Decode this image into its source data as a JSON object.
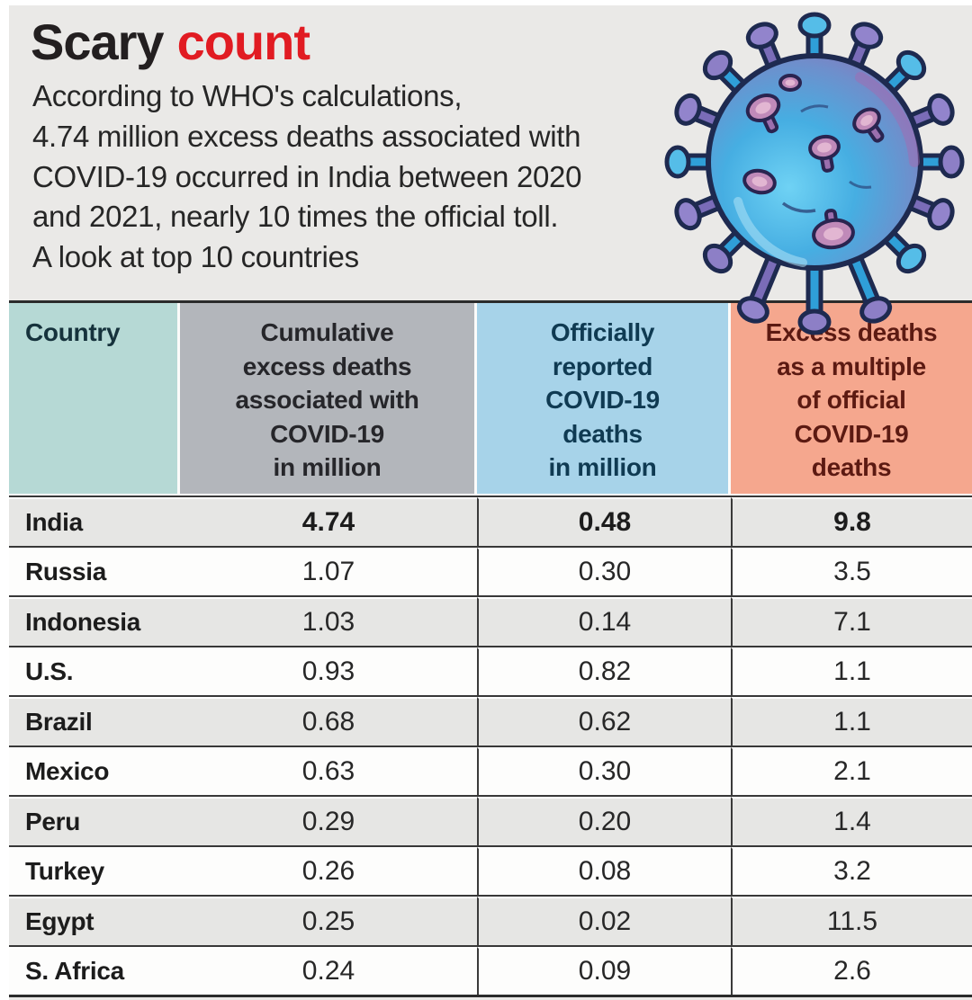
{
  "headline": {
    "word_black": "Scary",
    "word_red": "count"
  },
  "subtitle": "According to WHO's calculations,\n4.74 million excess deaths associated with\nCOVID-19 occurred in India between 2020\nand 2021, nearly 10 times the official toll.\nA look at top 10 countries",
  "illustration": {
    "name": "coronavirus",
    "body_gradient": [
      "#66cdf2",
      "#46aee2",
      "#9c64ae"
    ],
    "spike_cyan": "#2f9fd8",
    "spike_purple": "#7a6cb8",
    "outline": "#1e2a50",
    "spot_color": "#c08ab9"
  },
  "table": {
    "columns": [
      {
        "label": "Country",
        "bg": "#b6d9d5",
        "text_color": "#16323c"
      },
      {
        "label": "Cumulative\nexcess deaths\nassociated with\nCOVID-19\nin million",
        "bg": "#b3b6bb",
        "text_color": "#26262a"
      },
      {
        "label": "Officially\nreported\nCOVID-19\ndeaths\nin million",
        "bg": "#a7d3e9",
        "text_color": "#0f3a52"
      },
      {
        "label": "Excess deaths\nas a multiple\nof official\nCOVID-19\ndeaths",
        "bg": "#f5a78e",
        "text_color": "#5c1a12"
      }
    ],
    "rows": [
      {
        "country": "India",
        "excess": "4.74",
        "official": "0.48",
        "multiple": "9.8",
        "bold": true
      },
      {
        "country": "Russia",
        "excess": "1.07",
        "official": "0.30",
        "multiple": "3.5",
        "bold": false
      },
      {
        "country": "Indonesia",
        "excess": "1.03",
        "official": "0.14",
        "multiple": "7.1",
        "bold": false
      },
      {
        "country": "U.S.",
        "excess": "0.93",
        "official": "0.82",
        "multiple": "1.1",
        "bold": false
      },
      {
        "country": "Brazil",
        "excess": "0.68",
        "official": "0.62",
        "multiple": "1.1",
        "bold": false
      },
      {
        "country": "Mexico",
        "excess": "0.63",
        "official": "0.30",
        "multiple": "2.1",
        "bold": false
      },
      {
        "country": "Peru",
        "excess": "0.29",
        "official": "0.20",
        "multiple": "1.4",
        "bold": false
      },
      {
        "country": "Turkey",
        "excess": "0.26",
        "official": "0.08",
        "multiple": "3.2",
        "bold": false
      },
      {
        "country": "Egypt",
        "excess": "0.25",
        "official": "0.02",
        "multiple": "11.5",
        "bold": false
      },
      {
        "country": "S. Africa",
        "excess": "0.24",
        "official": "0.09",
        "multiple": "2.6",
        "bold": false
      }
    ]
  },
  "colors": {
    "panel_bg": "#eae9e7",
    "title_black": "#231f20",
    "title_red": "#e11b22",
    "row_alt": "#e6e6e4",
    "row_white": "#fdfdfc",
    "border_dark": "#2b2b2b"
  },
  "chart_data": {
    "type": "table",
    "title": "Scary count",
    "subtitle": "According to WHO's calculations, 4.74 million excess deaths associated with COVID-19 occurred in India between 2020 and 2021, nearly 10 times the official toll. A look at top 10 countries",
    "columns": [
      "Country",
      "Cumulative excess deaths associated with COVID-19 in million",
      "Officially reported COVID-19 deaths in million",
      "Excess deaths as a multiple of official COVID-19 deaths"
    ],
    "rows": [
      [
        "India",
        4.74,
        0.48,
        9.8
      ],
      [
        "Russia",
        1.07,
        0.3,
        3.5
      ],
      [
        "Indonesia",
        1.03,
        0.14,
        7.1
      ],
      [
        "U.S.",
        0.93,
        0.82,
        1.1
      ],
      [
        "Brazil",
        0.68,
        0.62,
        1.1
      ],
      [
        "Mexico",
        0.63,
        0.3,
        2.1
      ],
      [
        "Peru",
        0.29,
        0.2,
        1.4
      ],
      [
        "Turkey",
        0.26,
        0.08,
        3.2
      ],
      [
        "Egypt",
        0.25,
        0.02,
        11.5
      ],
      [
        "S. Africa",
        0.24,
        0.09,
        2.6
      ]
    ]
  }
}
